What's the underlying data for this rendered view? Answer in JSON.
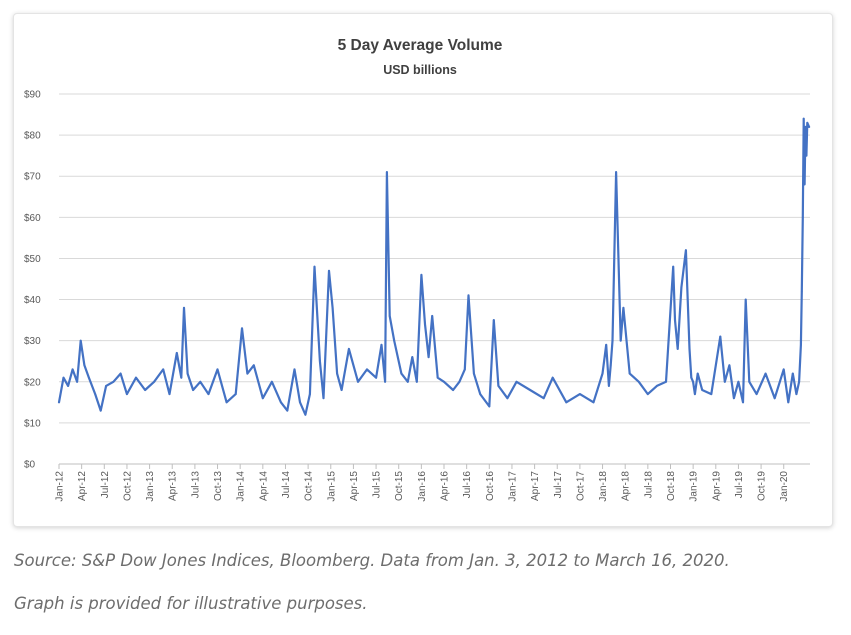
{
  "chart_data": {
    "type": "line",
    "title": "5 Day Average Volume",
    "subtitle": "USD billions",
    "xlabel": "",
    "ylabel": "",
    "ylim": [
      0,
      90
    ],
    "y_ticks": [
      0,
      10,
      20,
      30,
      40,
      50,
      60,
      70,
      80,
      90
    ],
    "y_tick_labels": [
      "$0",
      "$10",
      "$20",
      "$30",
      "$40",
      "$50",
      "$60",
      "$70",
      "$80",
      "$90"
    ],
    "x_range": [
      2012.0,
      2020.29
    ],
    "x_ticks": [
      2012.0,
      2012.25,
      2012.5,
      2012.75,
      2013.0,
      2013.25,
      2013.5,
      2013.75,
      2014.0,
      2014.25,
      2014.5,
      2014.75,
      2015.0,
      2015.25,
      2015.5,
      2015.75,
      2016.0,
      2016.25,
      2016.5,
      2016.75,
      2017.0,
      2017.25,
      2017.5,
      2017.75,
      2018.0,
      2018.25,
      2018.5,
      2018.75,
      2019.0,
      2019.25,
      2019.5,
      2019.75,
      2020.0
    ],
    "x_tick_labels": [
      "Jan-12",
      "Apr-12",
      "Jul-12",
      "Oct-12",
      "Jan-13",
      "Apr-13",
      "Jul-13",
      "Oct-13",
      "Jan-14",
      "Apr-14",
      "Jul-14",
      "Oct-14",
      "Jan-15",
      "Apr-15",
      "Jul-15",
      "Oct-15",
      "Jan-16",
      "Apr-16",
      "Jul-16",
      "Oct-16",
      "Jan-17",
      "Apr-17",
      "Jul-17",
      "Oct-17",
      "Jan-18",
      "Apr-18",
      "Jul-18",
      "Oct-18",
      "Jan-19",
      "Apr-19",
      "Jul-19",
      "Oct-19",
      "Jan-20"
    ],
    "grid": true,
    "legend": "none",
    "series": [
      {
        "name": "5 Day Average Volume",
        "color": "#4472c4",
        "x": [
          2012.0,
          2012.05,
          2012.1,
          2012.15,
          2012.2,
          2012.24,
          2012.28,
          2012.33,
          2012.4,
          2012.46,
          2012.52,
          2012.6,
          2012.68,
          2012.75,
          2012.85,
          2012.95,
          2013.05,
          2013.15,
          2013.22,
          2013.3,
          2013.35,
          2013.38,
          2013.42,
          2013.48,
          2013.56,
          2013.65,
          2013.75,
          2013.85,
          2013.95,
          2014.02,
          2014.08,
          2014.15,
          2014.25,
          2014.35,
          2014.45,
          2014.52,
          2014.6,
          2014.66,
          2014.72,
          2014.77,
          2014.82,
          2014.88,
          2014.92,
          2014.98,
          2015.02,
          2015.07,
          2015.12,
          2015.2,
          2015.3,
          2015.4,
          2015.5,
          2015.56,
          2015.6,
          2015.62,
          2015.65,
          2015.7,
          2015.78,
          2015.85,
          2015.9,
          2015.95,
          2016.0,
          2016.04,
          2016.08,
          2016.12,
          2016.18,
          2016.25,
          2016.35,
          2016.42,
          2016.48,
          2016.52,
          2016.58,
          2016.65,
          2016.75,
          2016.8,
          2016.85,
          2016.95,
          2017.05,
          2017.2,
          2017.35,
          2017.45,
          2017.6,
          2017.75,
          2017.9,
          2018.0,
          2018.04,
          2018.07,
          2018.09,
          2018.11,
          2018.15,
          2018.2,
          2018.23,
          2018.3,
          2018.4,
          2018.5,
          2018.6,
          2018.7,
          2018.78,
          2018.8,
          2018.83,
          2018.87,
          2018.92,
          2018.96,
          2018.98,
          2019.0,
          2019.02,
          2019.05,
          2019.1,
          2019.2,
          2019.3,
          2019.35,
          2019.4,
          2019.45,
          2019.5,
          2019.55,
          2019.58,
          2019.62,
          2019.7,
          2019.8,
          2019.9,
          2020.0,
          2020.05,
          2020.1,
          2020.14,
          2020.17,
          2020.19,
          2020.2,
          2020.21,
          2020.22,
          2020.23,
          2020.24,
          2020.25,
          2020.26,
          2020.28
        ],
        "values": [
          15,
          21,
          19,
          23,
          20,
          30,
          24,
          21,
          17,
          13,
          19,
          20,
          22,
          17,
          21,
          18,
          20,
          23,
          17,
          27,
          21,
          38,
          22,
          18,
          20,
          17,
          23,
          15,
          17,
          33,
          22,
          24,
          16,
          20,
          15,
          13,
          23,
          15,
          12,
          17,
          48,
          25,
          16,
          47,
          38,
          22,
          18,
          28,
          20,
          23,
          21,
          29,
          20,
          71,
          36,
          30,
          22,
          20,
          26,
          20,
          46,
          34,
          26,
          36,
          21,
          20,
          18,
          20,
          23,
          41,
          22,
          17,
          14,
          35,
          19,
          16,
          20,
          18,
          16,
          21,
          15,
          17,
          15,
          22,
          29,
          19,
          24,
          30,
          71,
          30,
          38,
          22,
          20,
          17,
          19,
          20,
          48,
          35,
          28,
          43,
          52,
          28,
          21,
          20,
          17,
          22,
          18,
          17,
          31,
          20,
          24,
          16,
          20,
          15,
          40,
          20,
          17,
          22,
          16,
          23,
          15,
          22,
          17,
          20,
          29,
          42,
          60,
          84,
          68,
          82,
          75,
          83,
          82
        ]
      }
    ]
  },
  "caption": {
    "source": "Source: S&P Dow Jones Indices, Bloomberg. Data from Jan. 3, 2012 to March 16, 2020.",
    "note": "Graph is provided for illustrative purposes."
  }
}
